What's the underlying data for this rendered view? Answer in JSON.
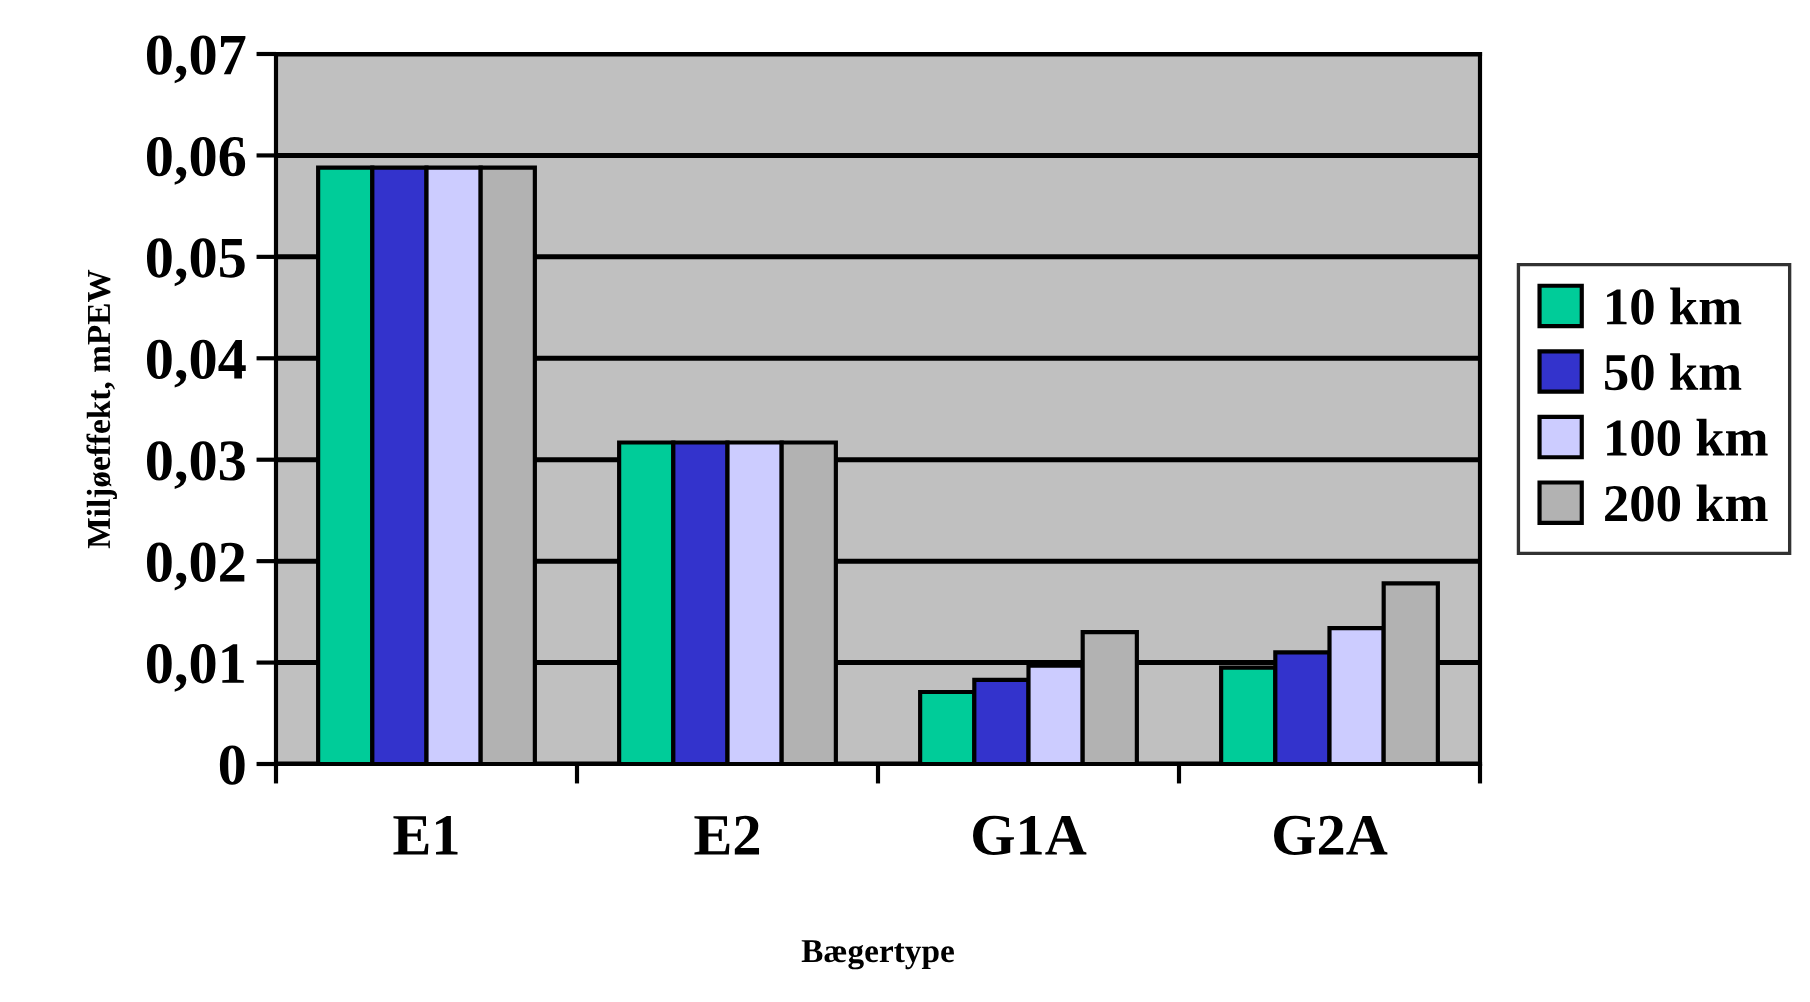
{
  "chart_data": {
    "type": "bar",
    "xlabel": "Bægertype",
    "ylabel": "Miljøeffekt, mPEW",
    "categories": [
      "E1",
      "E2",
      "G1A",
      "G2A"
    ],
    "series": [
      {
        "name": "10 km",
        "color": "#00cc99",
        "values": [
          0.0588,
          0.0317,
          0.0071,
          0.0095
        ]
      },
      {
        "name": "50 km",
        "color": "#3333cc",
        "values": [
          0.0588,
          0.0317,
          0.0083,
          0.011
        ]
      },
      {
        "name": "100 km",
        "color": "#ccccff",
        "values": [
          0.0588,
          0.0317,
          0.0097,
          0.0134
        ]
      },
      {
        "name": "200 km",
        "color": "#b2b2b2",
        "values": [
          0.0588,
          0.0317,
          0.013,
          0.0178
        ]
      }
    ],
    "ylim": [
      0,
      0.07
    ],
    "yticks": [
      {
        "value": 0,
        "label": "0"
      },
      {
        "value": 0.01,
        "label": "0,01"
      },
      {
        "value": 0.02,
        "label": "0,02"
      },
      {
        "value": 0.03,
        "label": "0,03"
      },
      {
        "value": 0.04,
        "label": "0,04"
      },
      {
        "value": 0.05,
        "label": "0,05"
      },
      {
        "value": 0.06,
        "label": "0,06"
      },
      {
        "value": 0.07,
        "label": "0,07"
      }
    ],
    "grid": "y",
    "legend": "right"
  }
}
